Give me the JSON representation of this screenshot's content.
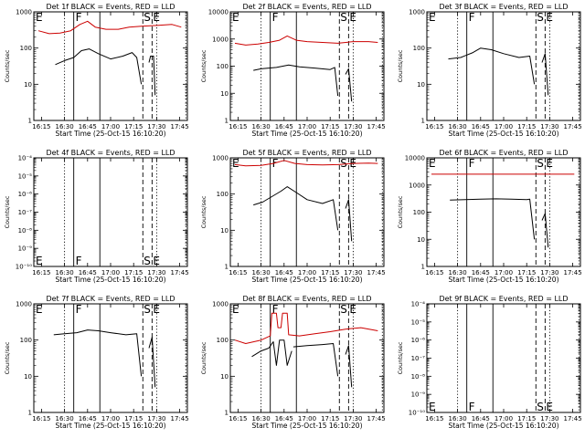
{
  "chart_data": [
    {
      "type": "line",
      "detector": "1f",
      "title": "Det 1f BLACK = Events, RED = LLD",
      "xlabel": "Start Time (25-Oct-15 16:10:20)",
      "ylabel": "Counts/sec",
      "xticks": [
        "16:15",
        "16:30",
        "16:45",
        "17:00",
        "17:15",
        "17:30",
        "17:45"
      ],
      "xlim": [
        "16:10",
        "17:50"
      ],
      "ylog": true,
      "ylim": [
        1,
        1000
      ],
      "yticks": [
        1,
        10,
        100,
        1000
      ],
      "ytick_labels": [
        "1",
        "10",
        "100",
        "1000"
      ],
      "markers": [
        "E",
        "F",
        "S",
        "E"
      ],
      "series": [
        {
          "color": "#cc0000",
          "x": [
            "16:13",
            "16:20",
            "16:27",
            "16:34",
            "16:40",
            "16:45",
            "16:50",
            "16:57",
            "17:05",
            "17:12",
            "17:20",
            "17:30",
            "17:40",
            "17:46"
          ],
          "y": [
            300,
            250,
            260,
            300,
            450,
            550,
            380,
            330,
            330,
            380,
            400,
            420,
            450,
            380
          ]
        },
        {
          "color": "#000000",
          "x": [
            "16:24",
            "16:30",
            "16:36",
            "16:41",
            "16:46",
            "16:52",
            "17:00",
            "17:08",
            "17:14",
            "17:17",
            "17:20"
          ],
          "y": [
            35,
            45,
            55,
            85,
            95,
            70,
            50,
            60,
            75,
            55,
            10
          ]
        },
        {
          "color": "#000000",
          "x": [
            "17:25",
            "17:26",
            "17:28",
            "17:29"
          ],
          "y": [
            40,
            60,
            60,
            5
          ]
        }
      ]
    },
    {
      "type": "line",
      "detector": "2f",
      "title": "Det 2f BLACK = Events, RED = LLD",
      "xlabel": "Start Time (25-Oct-15 16:10:20)",
      "ylabel": "Counts/sec",
      "xticks": [
        "16:15",
        "16:30",
        "16:45",
        "17:00",
        "17:15",
        "17:30",
        "17:45"
      ],
      "xlim": [
        "16:10",
        "17:50"
      ],
      "ylog": true,
      "ylim": [
        1,
        10000
      ],
      "yticks": [
        1,
        10,
        100,
        1000,
        10000
      ],
      "ytick_labels": [
        "1",
        "10",
        "100",
        "1000",
        "10000"
      ],
      "markers": [
        "E",
        "F",
        "S",
        "E"
      ],
      "series": [
        {
          "color": "#cc0000",
          "x": [
            "16:13",
            "16:20",
            "16:28",
            "16:35",
            "16:42",
            "16:47",
            "16:53",
            "17:00",
            "17:10",
            "17:20",
            "17:30",
            "17:40",
            "17:46"
          ],
          "y": [
            700,
            600,
            650,
            750,
            900,
            1300,
            900,
            800,
            750,
            700,
            800,
            800,
            750
          ]
        },
        {
          "color": "#000000",
          "x": [
            "16:25",
            "16:30",
            "16:40",
            "16:48",
            "16:55",
            "17:05",
            "17:15",
            "17:18",
            "17:20"
          ],
          "y": [
            70,
            80,
            90,
            110,
            95,
            85,
            75,
            90,
            8
          ]
        },
        {
          "color": "#000000",
          "x": [
            "17:25",
            "17:27",
            "17:29"
          ],
          "y": [
            50,
            80,
            5
          ]
        }
      ]
    },
    {
      "type": "line",
      "detector": "3f",
      "title": "Det 3f BLACK = Events, RED = LLD",
      "xlabel": "Start Time (25-Oct-15 16:10:20)",
      "ylabel": "Counts/sec",
      "xticks": [
        "16:15",
        "16:30",
        "16:45",
        "17:00",
        "17:15",
        "17:30",
        "17:45"
      ],
      "xlim": [
        "16:10",
        "17:50"
      ],
      "ylog": true,
      "ylim": [
        1,
        1000
      ],
      "yticks": [
        1,
        10,
        100,
        1000
      ],
      "ytick_labels": [
        "1",
        "10",
        "100",
        "1000"
      ],
      "markers": [
        "E",
        "F",
        "S",
        "E"
      ],
      "series": [
        {
          "color": "#000000",
          "x": [
            "16:24",
            "16:32",
            "16:40",
            "16:45",
            "16:52",
            "17:00",
            "17:10",
            "17:17",
            "17:20"
          ],
          "y": [
            50,
            55,
            75,
            100,
            90,
            70,
            55,
            60,
            10
          ]
        },
        {
          "color": "#000000",
          "x": [
            "17:25",
            "17:27",
            "17:29"
          ],
          "y": [
            40,
            70,
            5
          ]
        }
      ]
    },
    {
      "type": "line",
      "detector": "4f",
      "title": "Det 4f BLACK = Events, RED = LLD",
      "xlabel": "Start Time (25-Oct-15 16:10:20)",
      "ylabel": "Counts/sec",
      "xticks": [
        "16:15",
        "16:30",
        "16:45",
        "17:00",
        "17:15",
        "17:30",
        "17:45"
      ],
      "xlim": [
        "16:10",
        "17:50"
      ],
      "ylog": true,
      "ylim": [
        1e-10,
        0.0001
      ],
      "yticks": [
        1e-10,
        1e-09,
        1e-08,
        1e-07,
        1e-06,
        1e-05,
        0.0001
      ],
      "ytick_labels": [
        "10⁻¹⁰",
        "10⁻⁹",
        "10⁻⁸",
        "10⁻⁷",
        "10⁻⁶",
        "10⁻⁵",
        "10⁻⁴"
      ],
      "markers": [
        "E",
        "F",
        "S",
        "E"
      ],
      "series": []
    },
    {
      "type": "line",
      "detector": "5f",
      "title": "Det 5f BLACK = Events, RED = LLD",
      "xlabel": "Start Time (25-Oct-15 16:10:20)",
      "ylabel": "Counts/sec",
      "xticks": [
        "16:15",
        "16:30",
        "16:45",
        "17:00",
        "17:15",
        "17:30",
        "17:45"
      ],
      "xlim": [
        "16:10",
        "17:50"
      ],
      "ylog": true,
      "ylim": [
        1,
        1000
      ],
      "yticks": [
        1,
        10,
        100,
        1000
      ],
      "ytick_labels": [
        "1",
        "10",
        "100",
        "1000"
      ],
      "markers": [
        "E",
        "F",
        "S",
        "E"
      ],
      "series": [
        {
          "color": "#cc0000",
          "x": [
            "16:13",
            "16:20",
            "16:30",
            "16:38",
            "16:45",
            "16:52",
            "17:00",
            "17:10",
            "17:20",
            "17:30",
            "17:40",
            "17:46"
          ],
          "y": [
            650,
            600,
            620,
            700,
            850,
            700,
            650,
            640,
            650,
            700,
            720,
            700
          ]
        },
        {
          "color": "#000000",
          "x": [
            "16:25",
            "16:31",
            "16:38",
            "16:43",
            "16:47",
            "16:53",
            "17:00",
            "17:10",
            "17:17",
            "17:20"
          ],
          "y": [
            50,
            60,
            90,
            120,
            160,
            110,
            70,
            55,
            70,
            10
          ]
        },
        {
          "color": "#000000",
          "x": [
            "17:25",
            "17:27",
            "17:29"
          ],
          "y": [
            40,
            70,
            5
          ]
        }
      ]
    },
    {
      "type": "line",
      "detector": "6f",
      "title": "Det 6f BLACK = Events, RED = LLD",
      "xlabel": "Start Time (25-Oct-15 16:10:20)",
      "ylabel": "Counts/sec",
      "xticks": [
        "16:15",
        "16:30",
        "16:45",
        "17:00",
        "17:15",
        "17:30",
        "17:45"
      ],
      "xlim": [
        "16:10",
        "17:50"
      ],
      "ylog": true,
      "ylim": [
        1,
        10000
      ],
      "yticks": [
        1,
        10,
        100,
        1000,
        10000
      ],
      "ytick_labels": [
        "1",
        "10",
        "100",
        "1000",
        "10000"
      ],
      "markers": [
        "E",
        "F",
        "S",
        "E"
      ],
      "series": [
        {
          "color": "#cc0000",
          "x": [
            "16:13",
            "17:46"
          ],
          "y": [
            2500,
            2500
          ]
        },
        {
          "color": "#000000",
          "x": [
            "16:25",
            "16:35",
            "16:45",
            "16:55",
            "17:05",
            "17:15",
            "17:17",
            "17:20"
          ],
          "y": [
            280,
            290,
            300,
            310,
            300,
            290,
            300,
            10
          ]
        },
        {
          "color": "#000000",
          "x": [
            "17:25",
            "17:27",
            "17:29"
          ],
          "y": [
            50,
            90,
            5
          ]
        }
      ]
    },
    {
      "type": "line",
      "detector": "7f",
      "title": "Det 7f BLACK = Events, RED = LLD",
      "xlabel": "Start Time (25-Oct-15 16:10:20)",
      "ylabel": "Counts/sec",
      "xticks": [
        "16:15",
        "16:30",
        "16:45",
        "17:00",
        "17:15",
        "17:30",
        "17:45"
      ],
      "xlim": [
        "16:10",
        "17:50"
      ],
      "ylog": true,
      "ylim": [
        1,
        1000
      ],
      "yticks": [
        1,
        10,
        100,
        1000
      ],
      "ytick_labels": [
        "1",
        "10",
        "100",
        "1000"
      ],
      "markers": [
        "E",
        "F",
        "S",
        "E"
      ],
      "series": [
        {
          "color": "#000000",
          "x": [
            "16:23",
            "16:30",
            "16:38",
            "16:45",
            "16:52",
            "17:00",
            "17:10",
            "17:17",
            "17:20"
          ],
          "y": [
            140,
            150,
            160,
            190,
            180,
            160,
            140,
            150,
            10
          ]
        },
        {
          "color": "#000000",
          "x": [
            "17:25",
            "17:27",
            "17:29"
          ],
          "y": [
            60,
            120,
            5
          ]
        }
      ]
    },
    {
      "type": "line",
      "detector": "8f",
      "title": "Det 8f BLACK = Events, RED = LLD",
      "xlabel": "Start Time (25-Oct-15 16:10:20)",
      "ylabel": "Counts/sec",
      "xticks": [
        "16:15",
        "16:30",
        "16:45",
        "17:00",
        "17:15",
        "17:30",
        "17:45"
      ],
      "xlim": [
        "16:10",
        "17:50"
      ],
      "ylog": true,
      "ylim": [
        1,
        1000
      ],
      "yticks": [
        1,
        10,
        100,
        1000
      ],
      "ytick_labels": [
        "1",
        "10",
        "100",
        "1000"
      ],
      "markers": [
        "E",
        "F",
        "S",
        "E"
      ],
      "series": [
        {
          "color": "#cc0000",
          "x": [
            "16:13",
            "16:20",
            "16:30",
            "16:36",
            "16:37",
            "16:40",
            "16:41",
            "16:43",
            "16:44",
            "16:47",
            "16:48",
            "16:55",
            "17:05",
            "17:15",
            "17:25",
            "17:35",
            "17:46"
          ],
          "y": [
            100,
            80,
            100,
            130,
            550,
            550,
            220,
            220,
            550,
            550,
            140,
            130,
            150,
            170,
            200,
            220,
            180
          ]
        },
        {
          "color": "#000000",
          "x": [
            "16:24",
            "16:30",
            "16:35",
            "16:38",
            "16:40",
            "16:42",
            "16:45",
            "16:47",
            "16:50"
          ],
          "y": [
            35,
            50,
            60,
            90,
            20,
            100,
            100,
            20,
            50
          ]
        },
        {
          "color": "#000000",
          "x": [
            "16:51",
            "17:00",
            "17:10",
            "17:17",
            "17:20"
          ],
          "y": [
            65,
            70,
            75,
            80,
            10
          ]
        },
        {
          "color": "#000000",
          "x": [
            "17:25",
            "17:27",
            "17:29"
          ],
          "y": [
            40,
            70,
            5
          ]
        }
      ]
    },
    {
      "type": "line",
      "detector": "9f",
      "title": "Det 9f BLACK = Events, RED = LLD",
      "xlabel": "Start Time (25-Oct-15 16:10:20)",
      "ylabel": "Counts/sec",
      "xticks": [
        "16:15",
        "16:30",
        "16:45",
        "17:00",
        "17:15",
        "17:30",
        "17:45"
      ],
      "xlim": [
        "16:10",
        "17:50"
      ],
      "ylog": true,
      "ylim": [
        1e-10,
        0.0001
      ],
      "yticks": [
        1e-10,
        1e-09,
        1e-08,
        1e-07,
        1e-06,
        1e-05,
        0.0001
      ],
      "ytick_labels": [
        "10⁻¹⁰",
        "10⁻⁹",
        "10⁻⁸",
        "10⁻⁷",
        "10⁻⁶",
        "10⁻⁵",
        "10⁻⁴"
      ],
      "markers": [
        "E",
        "F",
        "S",
        "E"
      ],
      "series": []
    }
  ]
}
